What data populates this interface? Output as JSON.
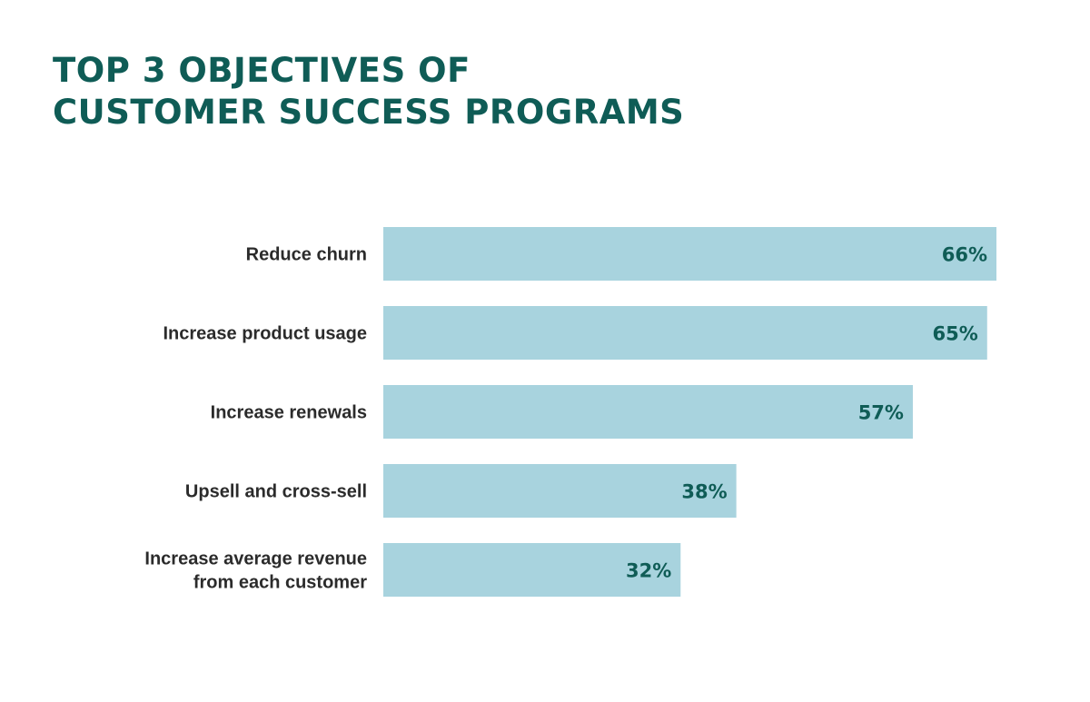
{
  "colors": {
    "title": "#0f5c56",
    "bar": "#a8d3de",
    "value_label": "#0f5c56",
    "category_label": "#2b2b2b"
  },
  "chart_data": {
    "type": "bar",
    "orientation": "horizontal",
    "title": "TOP 3 OBJECTIVES OF\nCUSTOMER SUCCESS PROGRAMS",
    "categories": [
      [
        "Reduce churn"
      ],
      [
        "Increase product usage"
      ],
      [
        "Increase renewals"
      ],
      [
        "Upsell and cross-sell"
      ],
      [
        "Increase average revenue",
        "from each customer"
      ]
    ],
    "values": [
      66,
      65,
      57,
      38,
      32
    ],
    "value_labels": [
      "66%",
      "65%",
      "57%",
      "38%",
      "32%"
    ],
    "unit": "%",
    "xlim": [
      0,
      66
    ],
    "grid": false,
    "legend": false
  }
}
